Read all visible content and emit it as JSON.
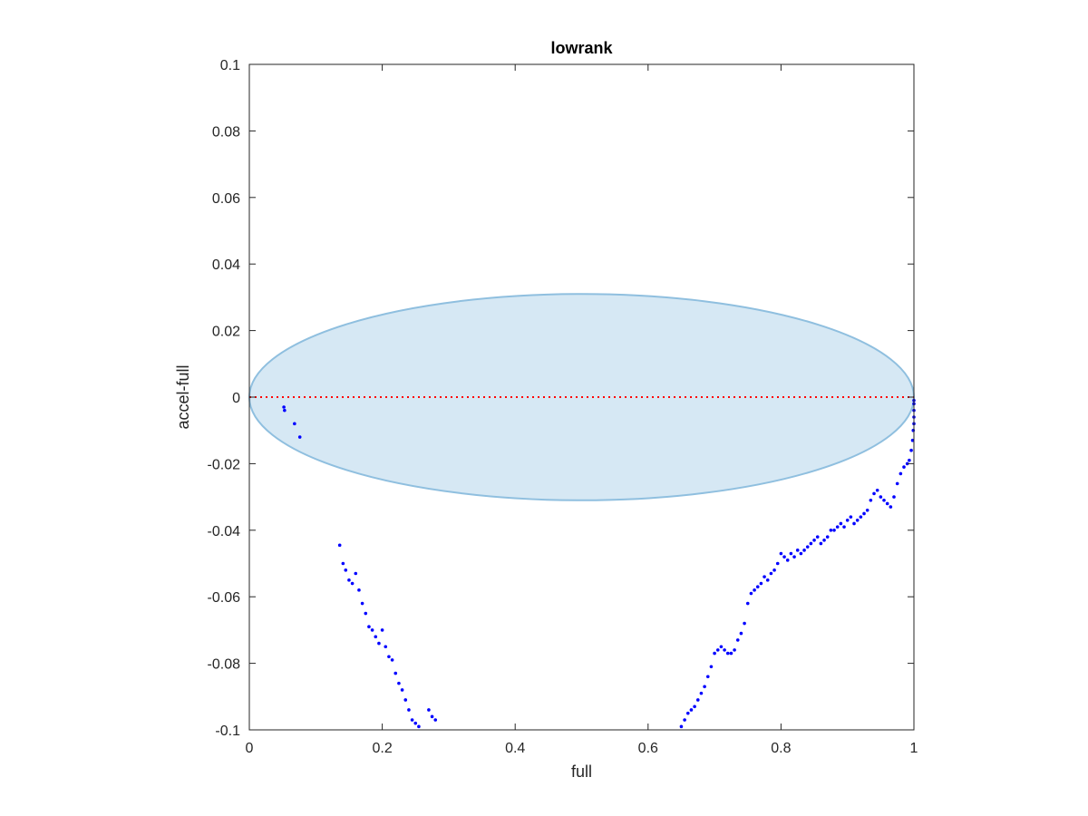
{
  "chart_data": {
    "type": "scatter",
    "title": "lowrank",
    "xlabel": "full",
    "ylabel": "accel-full",
    "xlim": [
      0,
      1
    ],
    "ylim": [
      -0.1,
      0.1
    ],
    "xticks": [
      0,
      0.2,
      0.4,
      0.6,
      0.8,
      1
    ],
    "xtick_labels": [
      "0",
      "0.2",
      "0.4",
      "0.6",
      "0.8",
      "1"
    ],
    "yticks": [
      -0.1,
      -0.08,
      -0.06,
      -0.04,
      -0.02,
      0,
      0.02,
      0.04,
      0.06,
      0.08,
      0.1
    ],
    "ytick_labels": [
      "-0.1",
      "-0.08",
      "-0.06",
      "-0.04",
      "-0.02",
      "0",
      "0.02",
      "0.04",
      "0.06",
      "0.08",
      "0.1"
    ],
    "grid": false,
    "legend": "none",
    "ellipse": {
      "cx": 0.5,
      "cy": 0,
      "rx": 0.5,
      "ry": 0.031,
      "fill": "#d6e8f4",
      "stroke": "#8fbfdf"
    },
    "zero_line": {
      "y": 0,
      "color": "#ff0000",
      "style": "dotted"
    },
    "marker_color": "#0000ff",
    "series": [
      {
        "x": [
          0.052,
          0.053,
          0.068,
          0.076,
          0.136,
          0.141,
          0.145,
          0.15,
          0.155,
          0.16,
          0.165,
          0.17,
          0.175,
          0.18,
          0.185,
          0.19,
          0.195,
          0.2,
          0.205,
          0.21,
          0.215,
          0.22,
          0.225,
          0.23,
          0.235,
          0.24,
          0.245,
          0.25,
          0.255,
          0.27,
          0.275,
          0.28,
          0.65,
          0.655,
          0.66,
          0.665,
          0.67,
          0.675,
          0.68,
          0.685,
          0.69,
          0.695,
          0.7,
          0.705,
          0.71,
          0.715,
          0.72,
          0.725,
          0.73,
          0.735,
          0.74,
          0.745,
          0.75,
          0.755,
          0.76,
          0.765,
          0.77,
          0.775,
          0.78,
          0.785,
          0.79,
          0.795,
          0.8,
          0.805,
          0.81,
          0.815,
          0.82,
          0.825,
          0.83,
          0.835,
          0.84,
          0.845,
          0.85,
          0.855,
          0.86,
          0.865,
          0.87,
          0.875,
          0.88,
          0.885,
          0.89,
          0.895,
          0.9,
          0.905,
          0.91,
          0.915,
          0.92,
          0.925,
          0.93,
          0.935,
          0.94,
          0.945,
          0.95,
          0.955,
          0.96,
          0.965,
          0.97,
          0.975,
          0.98,
          0.985,
          0.99,
          0.993,
          0.996,
          0.998,
          0.999,
          1.0,
          1.0,
          1.0,
          1.0,
          1.0
        ],
        "y": [
          -0.003,
          -0.004,
          -0.008,
          -0.012,
          -0.0445,
          -0.05,
          -0.052,
          -0.055,
          -0.056,
          -0.053,
          -0.058,
          -0.062,
          -0.065,
          -0.069,
          -0.07,
          -0.072,
          -0.074,
          -0.07,
          -0.075,
          -0.078,
          -0.079,
          -0.083,
          -0.086,
          -0.088,
          -0.091,
          -0.094,
          -0.097,
          -0.098,
          -0.099,
          -0.094,
          -0.096,
          -0.097,
          -0.099,
          -0.097,
          -0.095,
          -0.094,
          -0.093,
          -0.091,
          -0.089,
          -0.087,
          -0.084,
          -0.081,
          -0.077,
          -0.076,
          -0.075,
          -0.076,
          -0.077,
          -0.077,
          -0.076,
          -0.073,
          -0.071,
          -0.068,
          -0.062,
          -0.059,
          -0.058,
          -0.057,
          -0.056,
          -0.054,
          -0.055,
          -0.053,
          -0.052,
          -0.05,
          -0.047,
          -0.048,
          -0.049,
          -0.047,
          -0.048,
          -0.046,
          -0.047,
          -0.046,
          -0.045,
          -0.044,
          -0.043,
          -0.042,
          -0.044,
          -0.043,
          -0.042,
          -0.04,
          -0.04,
          -0.039,
          -0.038,
          -0.039,
          -0.037,
          -0.036,
          -0.038,
          -0.037,
          -0.036,
          -0.035,
          -0.034,
          -0.031,
          -0.029,
          -0.028,
          -0.03,
          -0.031,
          -0.032,
          -0.033,
          -0.03,
          -0.026,
          -0.023,
          -0.021,
          -0.02,
          -0.019,
          -0.016,
          -0.013,
          -0.01,
          -0.008,
          -0.006,
          -0.004,
          -0.002,
          -0.001
        ]
      }
    ]
  }
}
